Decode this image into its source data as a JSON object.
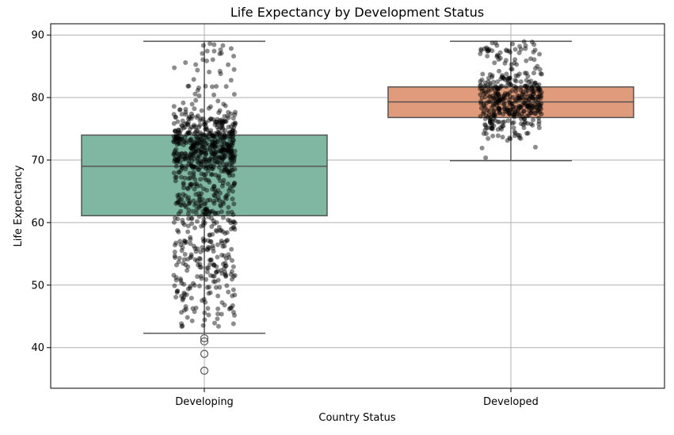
{
  "chart_data": {
    "type": "box",
    "title": "Life Expectancy by Development Status",
    "xlabel": "Country Status",
    "ylabel": "Life Expectancy",
    "ylim": [
      33.5,
      91.8
    ],
    "yticks": [
      40,
      50,
      60,
      70,
      80,
      90
    ],
    "categories": [
      "Developing",
      "Developed"
    ],
    "boxes": [
      {
        "category": "Developing",
        "whisker_low": 42.3,
        "q1": 61.1,
        "median": 69.0,
        "q3": 74.0,
        "whisker_high": 89.0,
        "color": "#7fb7a2",
        "outliers": [
          41.5,
          41.0,
          39.0,
          36.3
        ]
      },
      {
        "category": "Developed",
        "whisker_low": 69.9,
        "q1": 76.8,
        "median": 79.3,
        "q3": 81.7,
        "whisker_high": 89.0,
        "color": "#df9b7b",
        "outliers": []
      }
    ],
    "points_overlay": "jittered black points per observation",
    "grid": true,
    "legend": "none"
  }
}
